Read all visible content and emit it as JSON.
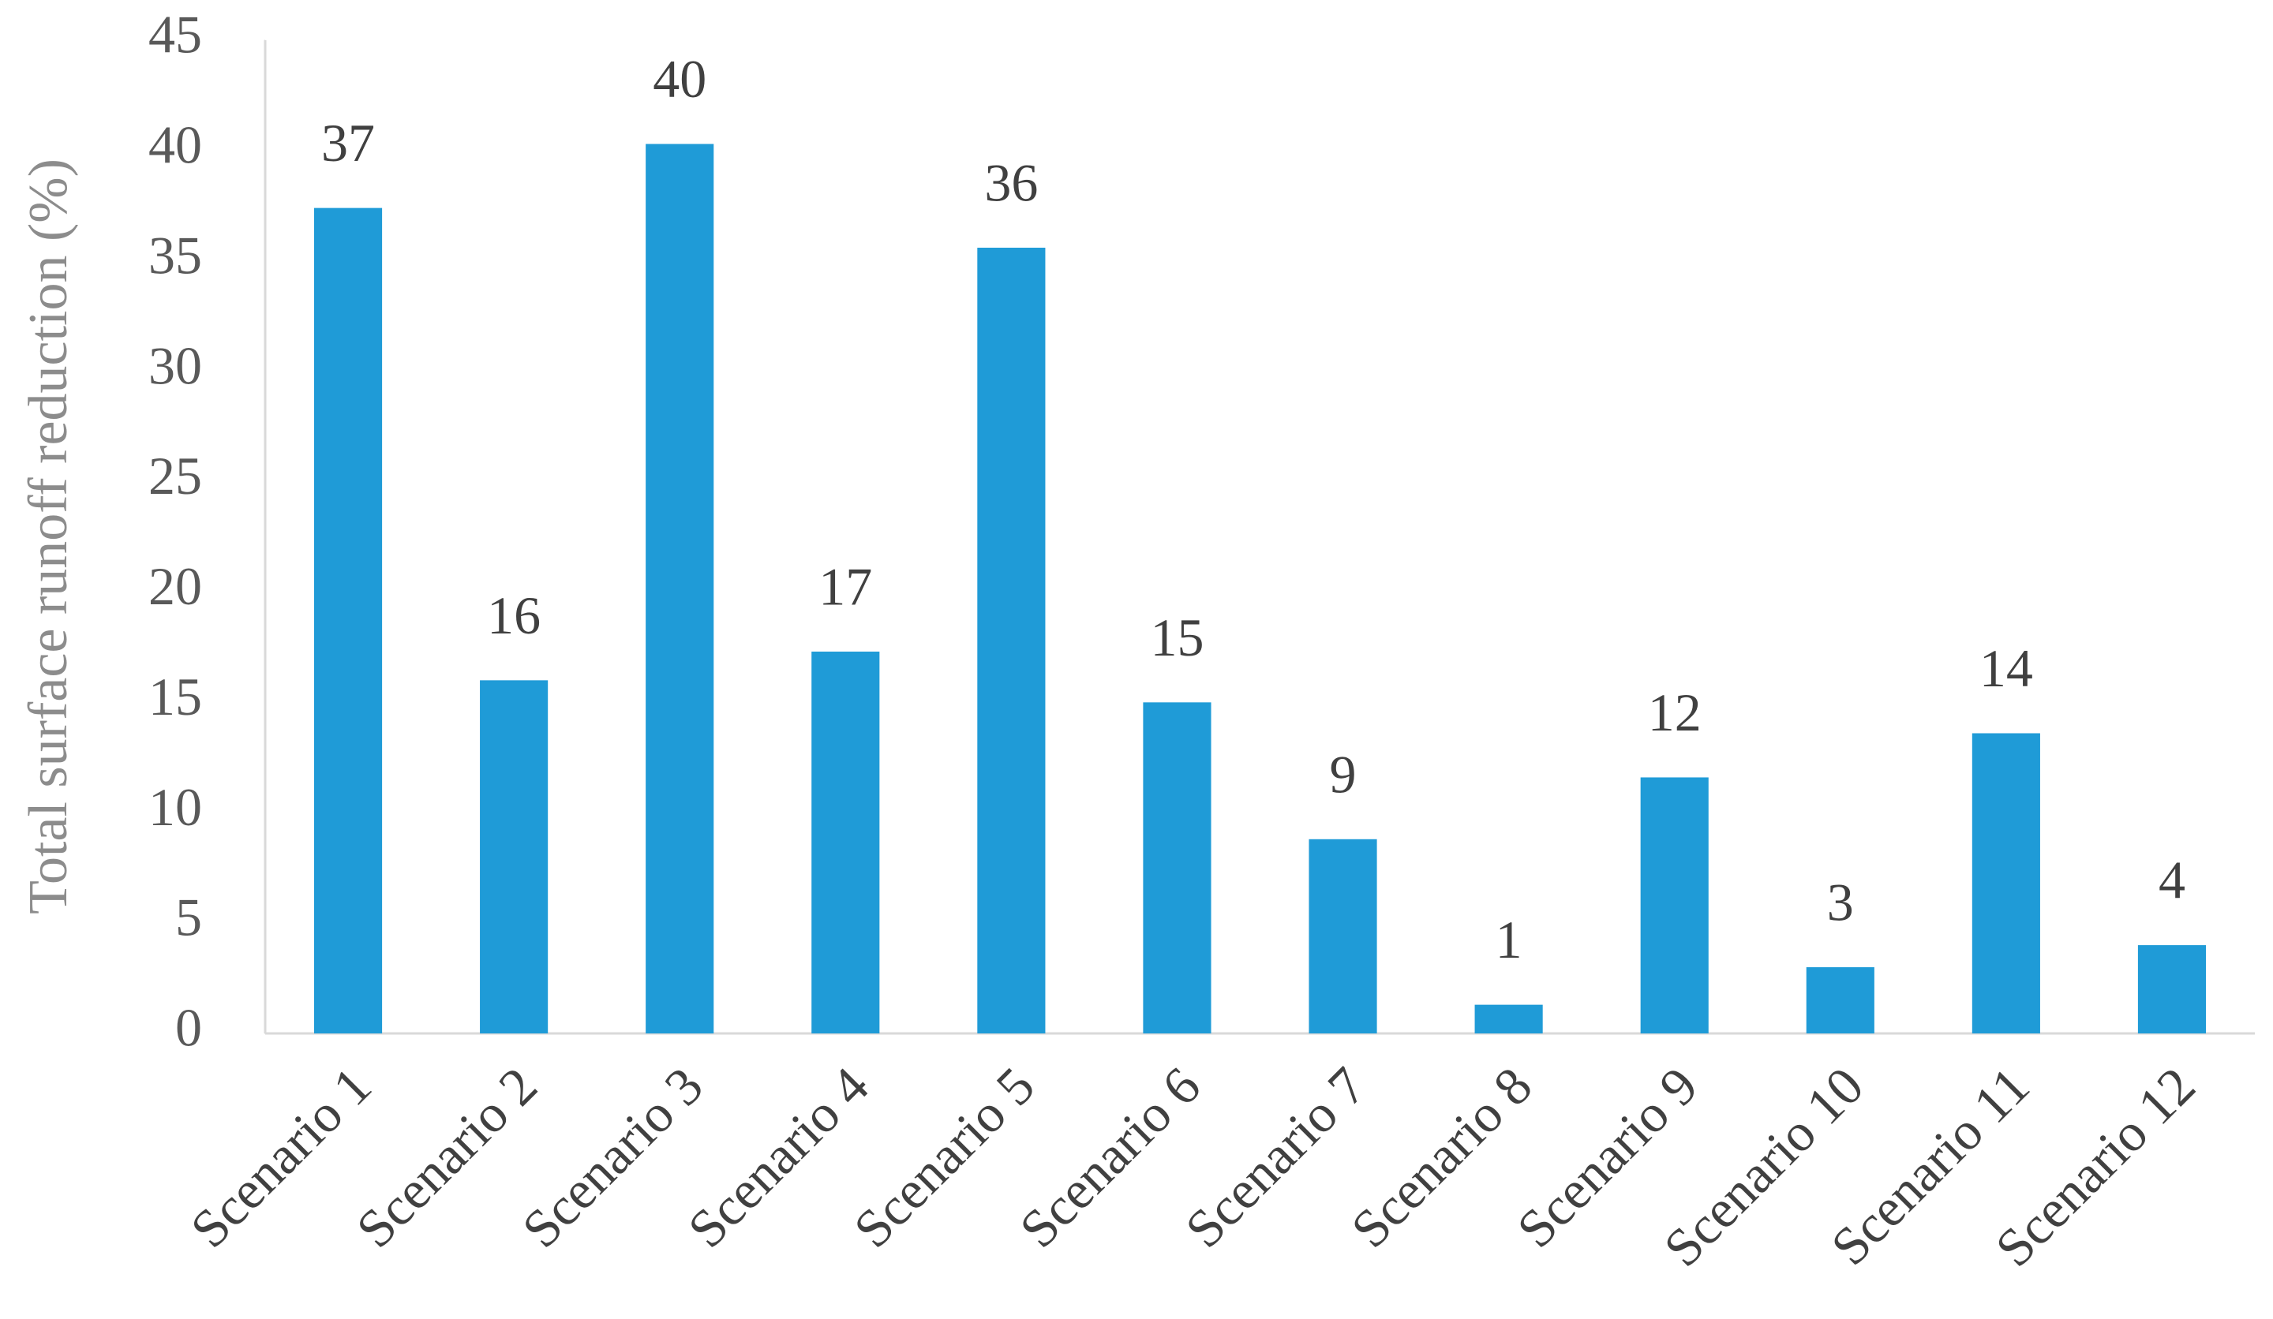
{
  "chart_data": {
    "type": "bar",
    "y_label": "Total surface runoff reduction (%)",
    "categories": [
      "Scenario 1",
      "Scenario 2",
      "Scenario 3",
      "Scenario 4",
      "Scenario 5",
      "Scenario 6",
      "Scenario 7",
      "Scenario 8",
      "Scenario 9",
      "Scenario 10",
      "Scenario 11",
      "Scenario 12"
    ],
    "values": [
      37.4,
      16.0,
      40.3,
      17.3,
      35.6,
      15.0,
      8.8,
      1.3,
      11.6,
      3.0,
      13.6,
      4.0
    ],
    "value_labels": [
      "37",
      "16",
      "40",
      "17",
      "36",
      "15",
      "9",
      "1",
      "12",
      "3",
      "14",
      "4"
    ],
    "color": "#1f9bd7",
    "ylim": [
      0,
      45
    ],
    "yticks": [
      0,
      5,
      10,
      15,
      20,
      25,
      30,
      35,
      40,
      45
    ],
    "grid": false
  }
}
